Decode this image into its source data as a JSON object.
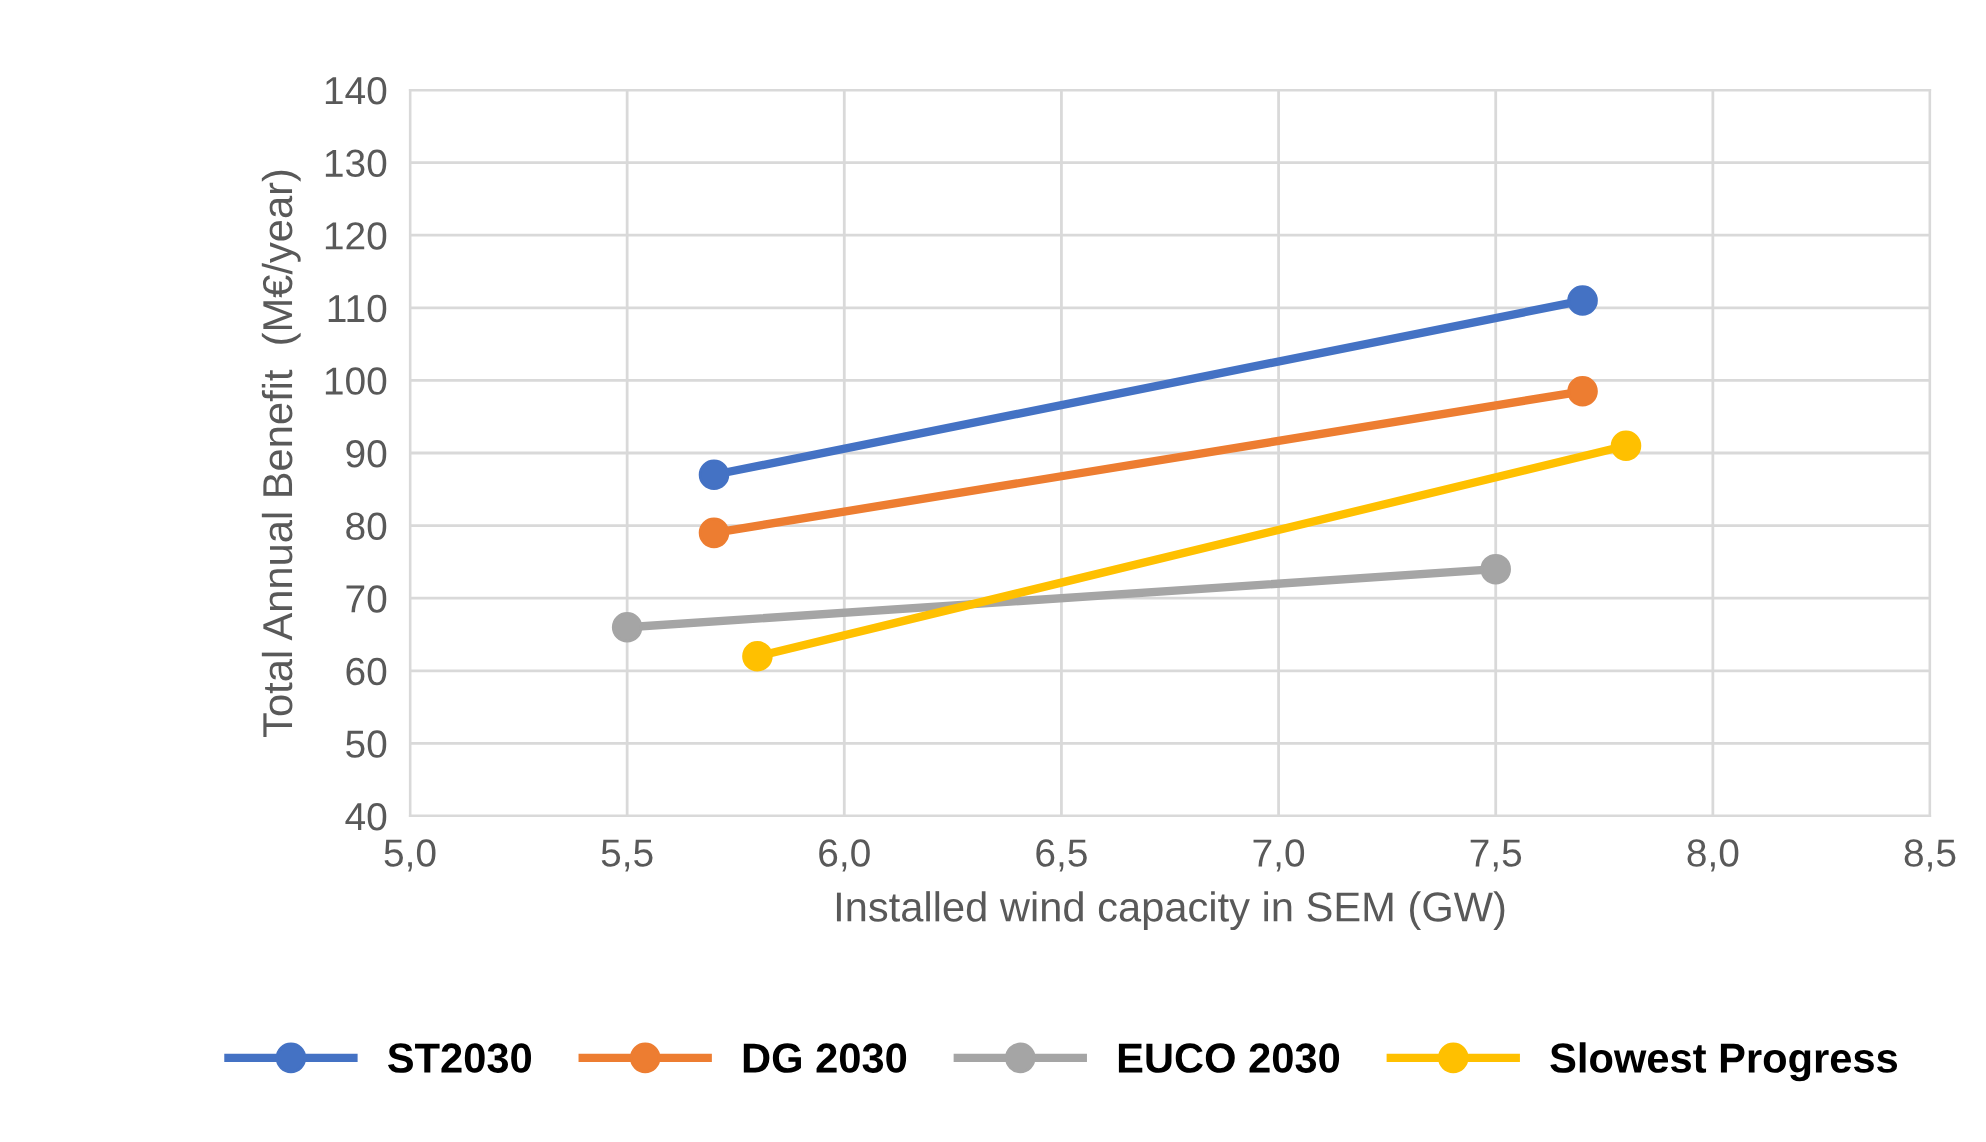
{
  "chart_data": {
    "type": "line",
    "xlabel": "Installed wind capacity in SEM (GW)",
    "ylabel": "Total Annual Benefit  (M€/year)",
    "xlim": [
      5.0,
      8.5
    ],
    "xticks": [
      {
        "value": 5.0,
        "label": "5,0"
      },
      {
        "value": 5.5,
        "label": "5,5"
      },
      {
        "value": 6.0,
        "label": "6,0"
      },
      {
        "value": 6.5,
        "label": "6,5"
      },
      {
        "value": 7.0,
        "label": "7,0"
      },
      {
        "value": 7.5,
        "label": "7,5"
      },
      {
        "value": 8.0,
        "label": "8,0"
      },
      {
        "value": 8.5,
        "label": "8,5"
      }
    ],
    "ylim": [
      40,
      140
    ],
    "yticks": [
      40,
      50,
      60,
      70,
      80,
      90,
      100,
      110,
      120,
      130,
      140
    ],
    "grid": true,
    "legend": "bottom",
    "marker": "circle",
    "line_style": "solid",
    "series": [
      {
        "name": "ST2030",
        "color": "#4472c4",
        "x": [
          5.7,
          7.7
        ],
        "values": [
          87,
          111
        ]
      },
      {
        "name": "DG 2030",
        "color": "#ed7d31",
        "x": [
          5.7,
          7.7
        ],
        "values": [
          79,
          98.5
        ]
      },
      {
        "name": "EUCO 2030",
        "color": "#a5a5a5",
        "x": [
          5.5,
          7.5
        ],
        "values": [
          66,
          74
        ]
      },
      {
        "name": "Slowest Progress",
        "color": "#ffc000",
        "x": [
          5.8,
          7.8
        ],
        "values": [
          62,
          91
        ]
      }
    ]
  }
}
